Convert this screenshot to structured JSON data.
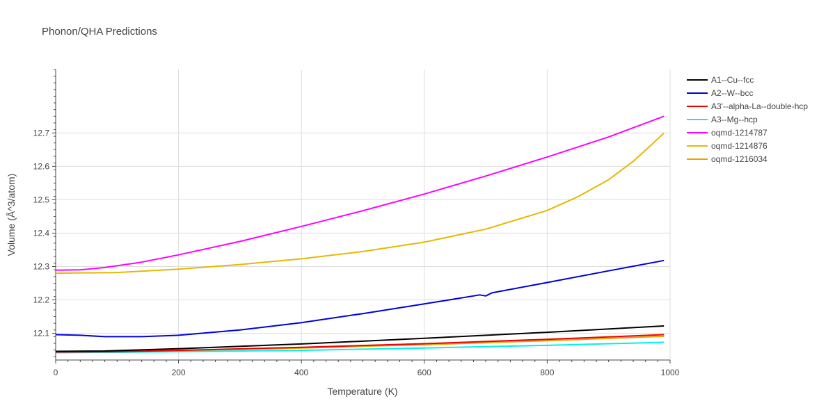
{
  "chart_data": {
    "type": "line",
    "title": "Phonon/QHA Predictions",
    "xlabel": "Temperature (K)",
    "ylabel": "Volume (Å^3/atom)",
    "xlim": [
      0,
      1000
    ],
    "ylim": [
      12.02,
      12.89
    ],
    "xticks": [
      0,
      200,
      400,
      600,
      800,
      1000
    ],
    "yticks": [
      12.1,
      12.2,
      12.3,
      12.4,
      12.5,
      12.6,
      12.7
    ],
    "grid": true,
    "legend_position": "top-right",
    "series": [
      {
        "name": "A1--Cu--fcc",
        "color": "#000000",
        "x": [
          0,
          80,
          200,
          400,
          600,
          800,
          990
        ],
        "y": [
          12.046,
          12.047,
          12.054,
          12.068,
          12.085,
          12.103,
          12.122
        ]
      },
      {
        "name": "A2--W--bcc",
        "color": "#0000dd",
        "x": [
          0,
          40,
          80,
          140,
          200,
          300,
          400,
          500,
          600,
          650,
          680,
          690,
          700,
          710,
          800,
          900,
          990
        ],
        "y": [
          12.096,
          12.094,
          12.09,
          12.09,
          12.094,
          12.11,
          12.132,
          12.159,
          12.188,
          12.203,
          12.212,
          12.215,
          12.212,
          12.221,
          12.252,
          12.287,
          12.318
        ]
      },
      {
        "name": "A3'--alpha-La--double-hcp",
        "color": "#ee0000",
        "x": [
          0,
          100,
          200,
          400,
          600,
          800,
          990
        ],
        "y": [
          12.044,
          12.045,
          12.049,
          12.058,
          12.069,
          12.082,
          12.096
        ]
      },
      {
        "name": "A3--Mg--hcp",
        "color": "#00f0f0",
        "x": [
          0,
          100,
          200,
          400,
          600,
          800,
          990
        ],
        "y": [
          12.042,
          12.043,
          12.045,
          12.049,
          12.056,
          12.064,
          12.073
        ]
      },
      {
        "name": "oqmd-1214787",
        "color": "#ff00ff",
        "x": [
          0,
          40,
          80,
          140,
          200,
          300,
          400,
          500,
          520,
          600,
          700,
          800,
          900,
          990
        ],
        "y": [
          12.289,
          12.29,
          12.297,
          12.313,
          12.335,
          12.375,
          12.42,
          12.467,
          12.477,
          12.517,
          12.571,
          12.628,
          12.688,
          12.75
        ]
      },
      {
        "name": "oqmd-1214876",
        "color": "#e6b800",
        "x": [
          0,
          100,
          200,
          300,
          400,
          500,
          600,
          700,
          800,
          850,
          900,
          940,
          970,
          990
        ],
        "y": [
          12.28,
          12.282,
          12.292,
          12.306,
          12.323,
          12.345,
          12.373,
          12.412,
          12.468,
          12.509,
          12.56,
          12.615,
          12.665,
          12.7
        ]
      },
      {
        "name": "oqmd-1216034",
        "color": "#f0a000",
        "x": [
          0,
          100,
          200,
          400,
          600,
          800,
          990
        ],
        "y": [
          12.042,
          12.044,
          12.048,
          12.056,
          12.066,
          12.078,
          12.091
        ]
      }
    ]
  }
}
